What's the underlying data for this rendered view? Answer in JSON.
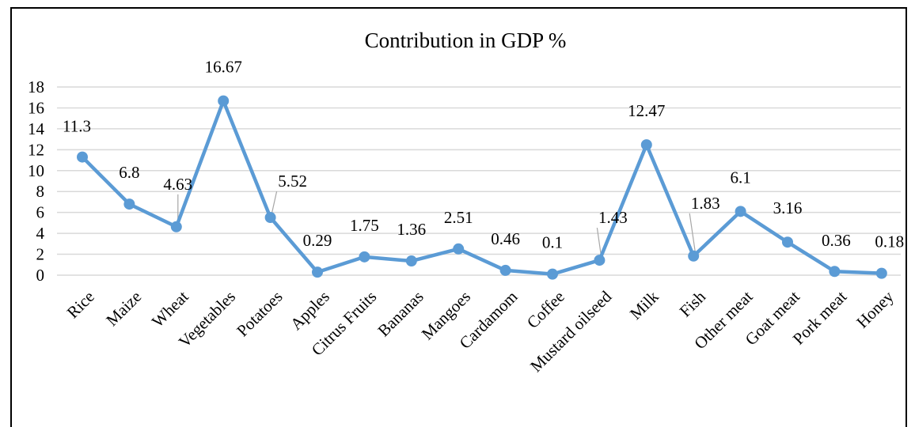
{
  "chart_data": {
    "type": "line",
    "title": "Contribution in GDP %",
    "categories": [
      "Rice",
      "Maize",
      "Wheat",
      "Vegetables",
      "Potatoes",
      "Apples",
      "Citrus Fruits",
      "Bananas",
      "Mangoes",
      "Cardamom",
      "Coffee",
      "Mustard oilseed",
      "Milk",
      "Fish",
      "Other meat",
      "Goat meat",
      "Pork meat",
      "Honey"
    ],
    "values": [
      11.3,
      6.8,
      4.63,
      16.67,
      5.52,
      0.29,
      1.75,
      1.36,
      2.51,
      0.46,
      0.1,
      1.43,
      12.47,
      1.83,
      6.1,
      3.16,
      0.36,
      0.18
    ],
    "data_labels": [
      "11.3",
      "6.8",
      "4.63",
      "16.67",
      "5.52",
      "0.29",
      "1.75",
      "1.36",
      "2.51",
      "0.46",
      "0.1",
      "1.43",
      "12.47",
      "1.83",
      "6.1",
      "3.16",
      "0.36",
      "0.18"
    ],
    "yticks": [
      0,
      2,
      4,
      6,
      8,
      10,
      12,
      14,
      16,
      18
    ],
    "ylim": [
      0,
      18
    ],
    "xlabel": "",
    "ylabel": "",
    "grid": true,
    "legend": "none",
    "colors": {
      "line": "#5b9bd5",
      "grid": "#d9d9d9",
      "leader": "#a6a6a6"
    }
  }
}
